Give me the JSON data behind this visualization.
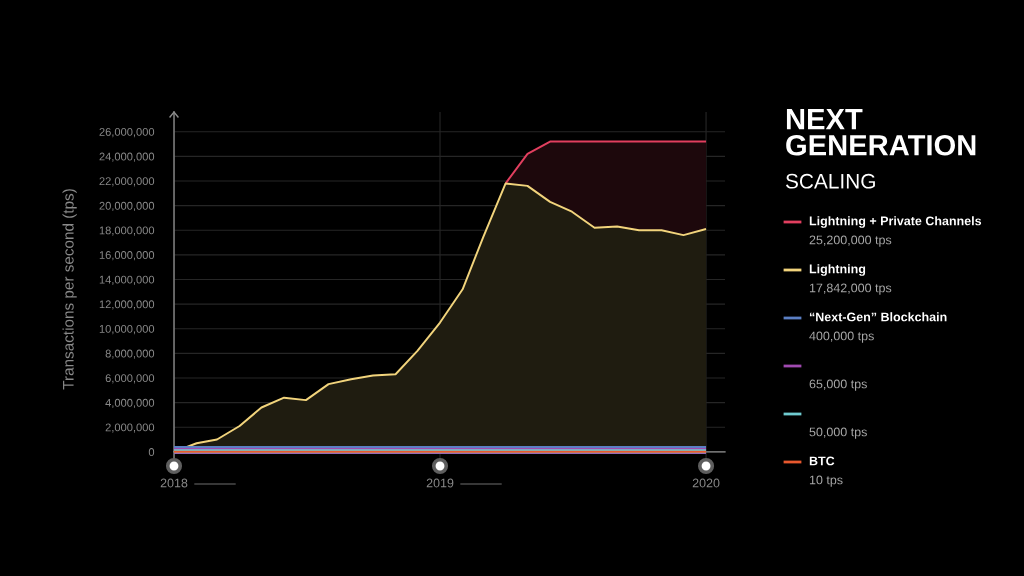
{
  "chart_data": {
    "type": "line",
    "title": "NEXT GENERATION",
    "subtitle": "SCALING",
    "ylabel": "Transactions per second (tps)",
    "annotations": [
      "25,200,000 tps",
      "17,842,000 tps",
      "400,000 tps",
      "65,000 tps",
      "50,000 tps",
      "10 tps"
    ],
    "x": [
      "2018-01",
      "2018-02",
      "2018-03",
      "2018-04",
      "2018-05",
      "2018-06",
      "2018-07",
      "2018-08",
      "2018-09",
      "2018-10",
      "2018-11",
      "2018-12",
      "2019-01",
      "2019-02",
      "2019-03",
      "2019-04",
      "2019-05",
      "2019-06",
      "2019-07",
      "2019-08",
      "2019-09",
      "2019-10",
      "2019-11",
      "2019-12",
      "2020-01"
    ],
    "series": [
      {
        "name": "Lightning + Private Channels",
        "type": "area",
        "color": "#e23f5f",
        "x": [
          "2019-04",
          "2019-05",
          "2019-06",
          "2019-07",
          "2019-08",
          "2019-09",
          "2019-10",
          "2019-11",
          "2019-12",
          "2020-01"
        ],
        "values": [
          21800000,
          24200000,
          25200000,
          25200000,
          25200000,
          25200000,
          25200000,
          25200000,
          25200000,
          25200000
        ]
      },
      {
        "name": "Lightning",
        "type": "area",
        "color": "#f2d47c",
        "values": [
          0,
          700000,
          1000000,
          2100000,
          3600000,
          4400000,
          4200000,
          5500000,
          5900000,
          6200000,
          6300000,
          8200000,
          10500000,
          13200000,
          17400000,
          21800000,
          21600000,
          20300000,
          19500000,
          18200000,
          18300000,
          18000000,
          18000000,
          17600000,
          18100000
        ]
      },
      {
        "name": "“Next-Gen” Blockchain",
        "color": "#5b7fc4",
        "x": [
          "2018-01",
          "2020-01"
        ],
        "values": [
          400000,
          400000
        ]
      },
      {
        "color": "#a04ab0",
        "x": [
          "2018-01",
          "2020-01"
        ],
        "values": [
          65000,
          65000
        ]
      },
      {
        "color": "#6fcbd0",
        "x": [
          "2018-01",
          "2020-01"
        ],
        "values": [
          50000,
          50000
        ]
      },
      {
        "name": "BTC",
        "color": "#e8582e",
        "x": [
          "2018-01",
          "2020-01"
        ],
        "values": [
          10,
          10
        ]
      }
    ],
    "xlim": [
      "2018-01-01",
      "2020-01-27"
    ],
    "xticks": [
      {
        "value": "2018-01",
        "label": "2018"
      },
      {
        "value": "2019-01",
        "label": "2019"
      },
      {
        "value": "2020-01",
        "label": "2020"
      }
    ],
    "ylim": [
      -1150000,
      27600000
    ],
    "yticks": [
      0,
      {
        "value": 2000000,
        "label": "2,000,000"
      },
      {
        "value": 4000000,
        "label": "4,000,000"
      },
      {
        "value": 6000000,
        "label": "6,000,000"
      },
      {
        "value": 8000000,
        "label": "8,000,000"
      },
      {
        "value": 10000000,
        "label": "10,000,000"
      },
      {
        "value": 12000000,
        "label": "12,000,000"
      },
      {
        "value": 14000000,
        "label": "14,000,000"
      },
      {
        "value": 16000000,
        "label": "16,000,000"
      },
      {
        "value": 18000000,
        "label": "18,000,000"
      },
      {
        "value": 20000000,
        "label": "20,000,000"
      },
      {
        "value": 22000000,
        "label": "22,000,000"
      },
      {
        "value": 24000000,
        "label": "24,000,000"
      },
      {
        "value": 26000000,
        "label": "26,000,000"
      }
    ],
    "grid": true,
    "legend": "right"
  }
}
